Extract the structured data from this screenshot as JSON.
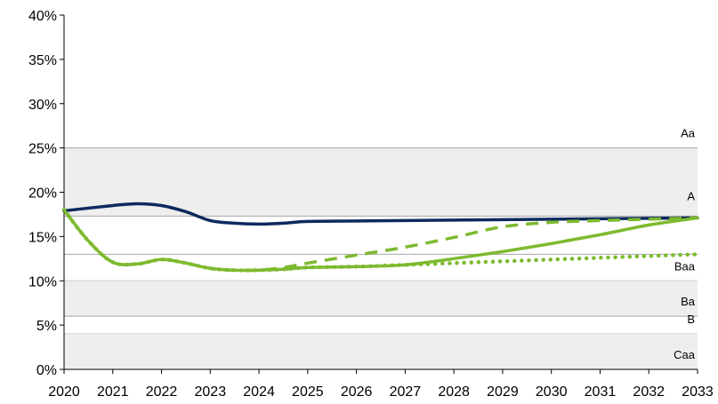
{
  "chart_data": {
    "type": "line",
    "title": "",
    "xlabel": "",
    "ylabel": "",
    "xlim": [
      2020,
      2033
    ],
    "ylim": [
      0,
      40
    ],
    "x_ticks": [
      "2020",
      "2021",
      "2022",
      "2023",
      "2024",
      "2025",
      "2026",
      "2027",
      "2028",
      "2029",
      "2030",
      "2031",
      "2032",
      "2033"
    ],
    "y_ticks": [
      "0%",
      "5%",
      "10%",
      "15%",
      "20%",
      "25%",
      "30%",
      "35%",
      "40%"
    ],
    "grid": false,
    "legend": "none",
    "rating_bands": [
      {
        "label": "Aa",
        "from": 17.3,
        "to": 25,
        "shaded": true
      },
      {
        "label": "A",
        "from": 13.0,
        "to": 17.3,
        "shaded": false
      },
      {
        "label": "Baa",
        "from": 10,
        "to": 13.0,
        "shaded": false
      },
      {
        "label": "Ba",
        "from": 6,
        "to": 10,
        "shaded": true
      },
      {
        "label": "B",
        "from": 4,
        "to": 6,
        "shaded": false
      },
      {
        "label": "Caa",
        "from": 0,
        "to": 4,
        "shaded": true
      }
    ],
    "series": [
      {
        "style": "solid",
        "color": "#0d2a5e",
        "x": [
          2020,
          2021,
          2021.5,
          2022,
          2022.5,
          2023,
          2023.5,
          2024,
          2024.5,
          2025,
          2026,
          2027,
          2028,
          2029,
          2030,
          2031,
          2032,
          2033
        ],
        "y": [
          17.9,
          18.5,
          18.7,
          18.5,
          17.8,
          16.8,
          16.5,
          16.4,
          16.5,
          16.7,
          16.75,
          16.8,
          16.85,
          16.9,
          16.95,
          17.0,
          17.05,
          17.1
        ]
      },
      {
        "style": "dashed",
        "color": "#7dba2f",
        "x": [
          2020,
          2020.5,
          2021,
          2021.5,
          2022,
          2022.5,
          2023,
          2023.5,
          2024,
          2024.5,
          2025,
          2026,
          2027,
          2028,
          2029,
          2030,
          2031,
          2032,
          2033
        ],
        "y": [
          18.0,
          14.5,
          12.1,
          11.9,
          12.4,
          12.0,
          11.4,
          11.2,
          11.2,
          11.5,
          12.0,
          12.9,
          13.8,
          14.9,
          16.1,
          16.6,
          16.8,
          16.95,
          17.1
        ]
      },
      {
        "style": "solid",
        "color": "#7dba2f",
        "x": [
          2020,
          2020.5,
          2021,
          2021.5,
          2022,
          2022.5,
          2023,
          2023.5,
          2024,
          2024.5,
          2025,
          2026,
          2027,
          2028,
          2029,
          2030,
          2031,
          2032,
          2033
        ],
        "y": [
          18.0,
          14.5,
          12.1,
          11.9,
          12.4,
          12.0,
          11.4,
          11.2,
          11.2,
          11.3,
          11.5,
          11.6,
          11.8,
          12.5,
          13.3,
          14.2,
          15.2,
          16.3,
          17.1
        ]
      },
      {
        "style": "dotted",
        "color": "#7dba2f",
        "x": [
          2020,
          2020.5,
          2021,
          2021.5,
          2022,
          2022.5,
          2023,
          2023.5,
          2024,
          2024.5,
          2025,
          2026,
          2027,
          2028,
          2029,
          2030,
          2031,
          2032,
          2033
        ],
        "y": [
          18.0,
          14.5,
          12.1,
          11.9,
          12.4,
          12.0,
          11.4,
          11.2,
          11.2,
          11.3,
          11.5,
          11.6,
          11.8,
          12.0,
          12.2,
          12.4,
          12.6,
          12.8,
          13.0
        ]
      }
    ]
  }
}
